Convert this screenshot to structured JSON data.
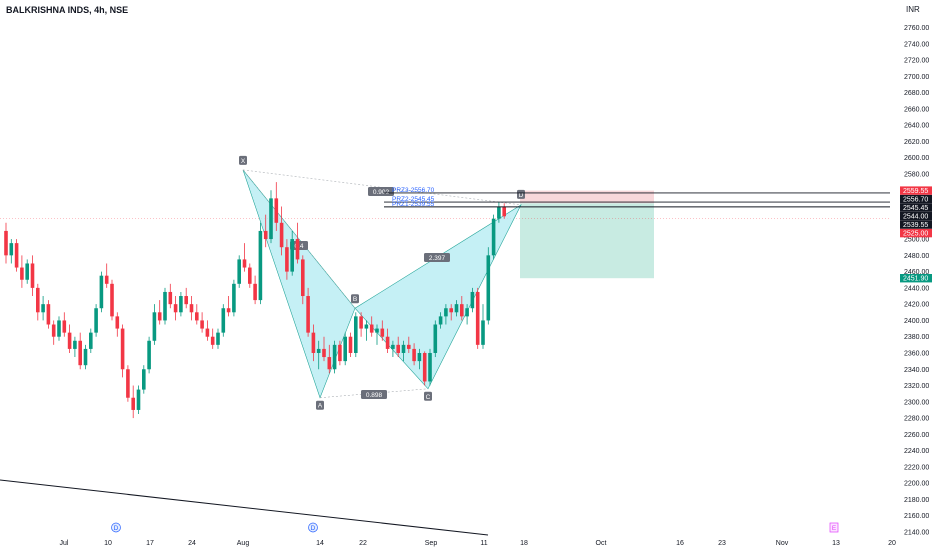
{
  "header": {
    "title": "BALKRISHNA INDS, 4h, NSE",
    "currency": "INR"
  },
  "colors": {
    "up": "#089981",
    "down": "#f23645",
    "pattern_fill": "#b2ebf2",
    "pattern_line": "#26a69a",
    "label_bg": "#6b6f7a",
    "stop_zone": "#f8d7da",
    "target_zone": "#c8ebe2",
    "event_d": "#2962ff",
    "event_e": "#e040fb"
  },
  "chart_data": {
    "type": "candlestick",
    "title": "BALKRISHNA INDS, 4h, NSE",
    "ylim": [
      2140,
      2760
    ],
    "y_ticks": [
      "2760.00",
      "2740.00",
      "2720.00",
      "2700.00",
      "2680.00",
      "2660.00",
      "2640.00",
      "2620.00",
      "2600.00",
      "2580.00",
      "2560.00",
      "2540.00",
      "2520.00",
      "2500.00",
      "2480.00",
      "2460.00",
      "2440.00",
      "2420.00",
      "2400.00",
      "2380.00",
      "2360.00",
      "2340.00",
      "2320.00",
      "2300.00",
      "2280.00",
      "2260.00",
      "2240.00",
      "2220.00",
      "2200.00",
      "2180.00",
      "2160.00",
      "2140.00"
    ],
    "x_ticks": [
      "Jul",
      "10",
      "17",
      "24",
      "Aug",
      "14",
      "22",
      "Sep",
      "11",
      "18",
      "Oct",
      "16",
      "23",
      "Nov",
      "13",
      "20"
    ],
    "price_labels": [
      {
        "text": "2559.55",
        "value": 2559.55,
        "color": "#f23645"
      },
      {
        "text": "2556.70",
        "value": 2556.7,
        "color": "#131722"
      },
      {
        "text": "2545.45",
        "value": 2545.45,
        "color": "#131722"
      },
      {
        "text": "2544.00",
        "value": 2544.0,
        "color": "#131722"
      },
      {
        "text": "2539.55",
        "value": 2539.55,
        "color": "#131722"
      },
      {
        "text": "2525.00",
        "value": 2525.0,
        "color": "#f23645"
      },
      {
        "text": "2451.90",
        "value": 2451.9,
        "color": "#089981"
      }
    ],
    "pattern": {
      "points": [
        {
          "label": "X",
          "value": 2585
        },
        {
          "label": "A",
          "value": 2305
        },
        {
          "label": "B",
          "value": 2415
        },
        {
          "label": "C",
          "value": 2316
        },
        {
          "label": "D",
          "value": 2542
        }
      ],
      "ratios": [
        {
          "text": "0.4"
        },
        {
          "text": "0.898"
        },
        {
          "text": "2.397"
        },
        {
          "text": "0.902"
        }
      ],
      "prz": [
        {
          "text": "PRZ3-2556.70",
          "value": 2556.7
        },
        {
          "text": "PRZ2-2545.45",
          "value": 2545.45
        },
        {
          "text": "PRZ1-2539.55",
          "value": 2539.55
        }
      ]
    },
    "trade_zone": {
      "stop": 2559.55,
      "entry": 2544.0,
      "target": 2451.9
    },
    "events": [
      {
        "text": "D"
      },
      {
        "text": "D"
      },
      {
        "text": "E"
      }
    ],
    "candles": [
      [
        2510,
        2520,
        2470,
        2480
      ],
      [
        2480,
        2500,
        2470,
        2495
      ],
      [
        2495,
        2500,
        2460,
        2465
      ],
      [
        2465,
        2480,
        2440,
        2450
      ],
      [
        2450,
        2475,
        2445,
        2470
      ],
      [
        2470,
        2480,
        2430,
        2440
      ],
      [
        2440,
        2445,
        2400,
        2410
      ],
      [
        2410,
        2430,
        2400,
        2420
      ],
      [
        2420,
        2425,
        2390,
        2395
      ],
      [
        2395,
        2400,
        2370,
        2380
      ],
      [
        2380,
        2405,
        2375,
        2400
      ],
      [
        2400,
        2410,
        2380,
        2385
      ],
      [
        2385,
        2395,
        2360,
        2365
      ],
      [
        2365,
        2380,
        2355,
        2375
      ],
      [
        2375,
        2385,
        2340,
        2345
      ],
      [
        2345,
        2370,
        2340,
        2365
      ],
      [
        2365,
        2390,
        2360,
        2385
      ],
      [
        2385,
        2420,
        2380,
        2415
      ],
      [
        2415,
        2460,
        2410,
        2455
      ],
      [
        2455,
        2470,
        2440,
        2445
      ],
      [
        2445,
        2450,
        2400,
        2405
      ],
      [
        2405,
        2410,
        2380,
        2390
      ],
      [
        2390,
        2395,
        2330,
        2340
      ],
      [
        2340,
        2345,
        2300,
        2305
      ],
      [
        2305,
        2320,
        2280,
        2290
      ],
      [
        2290,
        2320,
        2285,
        2315
      ],
      [
        2315,
        2345,
        2310,
        2340
      ],
      [
        2340,
        2380,
        2335,
        2375
      ],
      [
        2375,
        2420,
        2370,
        2410
      ],
      [
        2410,
        2425,
        2395,
        2400
      ],
      [
        2400,
        2440,
        2395,
        2435
      ],
      [
        2435,
        2445,
        2415,
        2420
      ],
      [
        2420,
        2430,
        2400,
        2410
      ],
      [
        2410,
        2435,
        2405,
        2430
      ],
      [
        2430,
        2440,
        2415,
        2420
      ],
      [
        2420,
        2430,
        2400,
        2410
      ],
      [
        2410,
        2420,
        2395,
        2400
      ],
      [
        2400,
        2410,
        2385,
        2390
      ],
      [
        2390,
        2400,
        2375,
        2380
      ],
      [
        2380,
        2390,
        2365,
        2370
      ],
      [
        2370,
        2390,
        2365,
        2385
      ],
      [
        2385,
        2420,
        2380,
        2415
      ],
      [
        2415,
        2430,
        2405,
        2410
      ],
      [
        2410,
        2450,
        2405,
        2445
      ],
      [
        2445,
        2480,
        2440,
        2475
      ],
      [
        2475,
        2495,
        2460,
        2465
      ],
      [
        2465,
        2470,
        2440,
        2445
      ],
      [
        2445,
        2455,
        2420,
        2425
      ],
      [
        2425,
        2520,
        2420,
        2510
      ],
      [
        2510,
        2530,
        2490,
        2500
      ],
      [
        2500,
        2560,
        2495,
        2550
      ],
      [
        2550,
        2570,
        2510,
        2520
      ],
      [
        2520,
        2540,
        2480,
        2490
      ],
      [
        2490,
        2500,
        2450,
        2460
      ],
      [
        2460,
        2510,
        2455,
        2500
      ],
      [
        2500,
        2520,
        2470,
        2475
      ],
      [
        2475,
        2480,
        2420,
        2430
      ],
      [
        2430,
        2440,
        2380,
        2385
      ],
      [
        2385,
        2395,
        2350,
        2360
      ],
      [
        2360,
        2375,
        2340,
        2365
      ],
      [
        2365,
        2380,
        2350,
        2355
      ],
      [
        2355,
        2370,
        2335,
        2340
      ],
      [
        2340,
        2375,
        2335,
        2370
      ],
      [
        2370,
        2375,
        2345,
        2350
      ],
      [
        2350,
        2385,
        2345,
        2380
      ],
      [
        2380,
        2385,
        2355,
        2360
      ],
      [
        2360,
        2410,
        2355,
        2405
      ],
      [
        2405,
        2410,
        2380,
        2390
      ],
      [
        2390,
        2400,
        2375,
        2395
      ],
      [
        2395,
        2405,
        2380,
        2385
      ],
      [
        2385,
        2395,
        2370,
        2390
      ],
      [
        2390,
        2400,
        2375,
        2380
      ],
      [
        2380,
        2390,
        2360,
        2365
      ],
      [
        2365,
        2375,
        2355,
        2370
      ],
      [
        2370,
        2380,
        2355,
        2360
      ],
      [
        2360,
        2375,
        2350,
        2370
      ],
      [
        2370,
        2380,
        2360,
        2365
      ],
      [
        2365,
        2372,
        2345,
        2350
      ],
      [
        2350,
        2365,
        2340,
        2360
      ],
      [
        2360,
        2362,
        2320,
        2325
      ],
      [
        2325,
        2365,
        2320,
        2360
      ],
      [
        2360,
        2400,
        2355,
        2395
      ],
      [
        2395,
        2410,
        2390,
        2405
      ],
      [
        2405,
        2420,
        2395,
        2415
      ],
      [
        2415,
        2420,
        2400,
        2410
      ],
      [
        2410,
        2425,
        2405,
        2420
      ],
      [
        2420,
        2430,
        2400,
        2405
      ],
      [
        2405,
        2420,
        2395,
        2415
      ],
      [
        2415,
        2440,
        2410,
        2435
      ],
      [
        2435,
        2440,
        2365,
        2370
      ],
      [
        2370,
        2420,
        2365,
        2400
      ],
      [
        2400,
        2490,
        2395,
        2480
      ],
      [
        2480,
        2530,
        2475,
        2525
      ],
      [
        2525,
        2545,
        2520,
        2540
      ],
      [
        2540,
        2544,
        2525,
        2528
      ]
    ]
  }
}
